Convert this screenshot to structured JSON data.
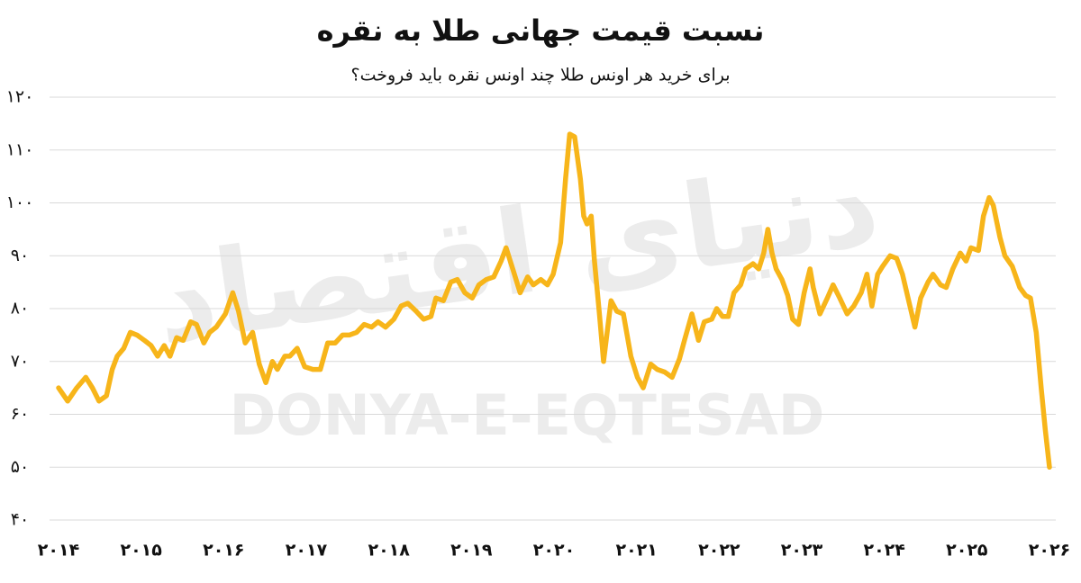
{
  "chart_data": {
    "type": "line",
    "title": "نسبت قیمت جهانی طلا به نقره",
    "subtitle": "برای خرید هر اونس طلا چند اونس نقره باید فروخت؟",
    "watermarks": [
      "دنیای اقتصاد",
      "DONYA-E-EQTESAD"
    ],
    "color": "#f7b51a",
    "grid": true,
    "xlim": [
      2014,
      2026
    ],
    "ylim": [
      40,
      120
    ],
    "xticks": [
      {
        "value": 2014,
        "label": "۲۰۱۴"
      },
      {
        "value": 2015,
        "label": "۲۰۱۵"
      },
      {
        "value": 2016,
        "label": "۲۰۱۶"
      },
      {
        "value": 2017,
        "label": "۲۰۱۷"
      },
      {
        "value": 2018,
        "label": "۲۰۱۸"
      },
      {
        "value": 2019,
        "label": "۲۰۱۹"
      },
      {
        "value": 2020,
        "label": "۲۰۲۰"
      },
      {
        "value": 2021,
        "label": "۲۰۲۱"
      },
      {
        "value": 2022,
        "label": "۲۰۲۲"
      },
      {
        "value": 2023,
        "label": "۲۰۲۳"
      },
      {
        "value": 2024,
        "label": "۲۰۲۴"
      },
      {
        "value": 2025,
        "label": "۲۰۲۵"
      },
      {
        "value": 2026,
        "label": "۲۰۲۶"
      }
    ],
    "yticks": [
      {
        "value": 40,
        "label": "۴۰"
      },
      {
        "value": 50,
        "label": "۵۰"
      },
      {
        "value": 60,
        "label": "۶۰"
      },
      {
        "value": 70,
        "label": "۷۰"
      },
      {
        "value": 80,
        "label": "۸۰"
      },
      {
        "value": 90,
        "label": "۹۰"
      },
      {
        "value": 100,
        "label": "۱۰۰"
      },
      {
        "value": 110,
        "label": "۱۱۰"
      },
      {
        "value": 120,
        "label": "۱۲۰"
      }
    ],
    "x": [
      2014.0,
      2014.11,
      2014.22,
      2014.33,
      2014.41,
      2014.49,
      2014.58,
      2014.65,
      2014.71,
      2014.79,
      2014.87,
      2014.95,
      2015.04,
      2015.12,
      2015.2,
      2015.28,
      2015.35,
      2015.43,
      2015.51,
      2015.6,
      2015.67,
      2015.76,
      2015.83,
      2015.91,
      2016.02,
      2016.11,
      2016.18,
      2016.26,
      2016.35,
      2016.43,
      2016.51,
      2016.59,
      2016.65,
      2016.74,
      2016.8,
      2016.89,
      2016.98,
      2017.08,
      2017.17,
      2017.26,
      2017.35,
      2017.44,
      2017.52,
      2017.61,
      2017.7,
      2017.79,
      2017.87,
      2017.96,
      2018.06,
      2018.15,
      2018.23,
      2018.33,
      2018.42,
      2018.51,
      2018.57,
      2018.66,
      2018.75,
      2018.83,
      2018.92,
      2019.01,
      2019.09,
      2019.18,
      2019.27,
      2019.36,
      2019.42,
      2019.5,
      2019.59,
      2019.68,
      2019.75,
      2019.84,
      2019.92,
      2019.99,
      2020.08,
      2020.14,
      2020.19,
      2020.25,
      2020.32,
      2020.36,
      2020.4,
      2020.45,
      2020.49,
      2020.55,
      2020.6,
      2020.69,
      2020.76,
      2020.84,
      2020.93,
      2021.01,
      2021.08,
      2021.17,
      2021.25,
      2021.34,
      2021.43,
      2021.52,
      2021.58,
      2021.67,
      2021.75,
      2021.82,
      2021.91,
      2021.97,
      2022.04,
      2022.11,
      2022.18,
      2022.26,
      2022.32,
      2022.41,
      2022.48,
      2022.54,
      2022.59,
      2022.64,
      2022.69,
      2022.76,
      2022.83,
      2022.89,
      2022.96,
      2023.03,
      2023.1,
      2023.14,
      2023.22,
      2023.31,
      2023.38,
      2023.46,
      2023.55,
      2023.63,
      2023.72,
      2023.79,
      2023.85,
      2023.92,
      2023.98,
      2024.07,
      2024.15,
      2024.22,
      2024.31,
      2024.37,
      2024.44,
      2024.53,
      2024.59,
      2024.68,
      2024.75,
      2024.83,
      2024.92,
      2024.99,
      2025.05,
      2025.14,
      2025.2,
      2025.27,
      2025.32,
      2025.4,
      2025.46,
      2025.55,
      2025.64,
      2025.71,
      2025.77,
      2025.84,
      2025.9,
      2025.95,
      2026.0
    ],
    "values": [
      65,
      62.5,
      65,
      67,
      65,
      62.5,
      63.5,
      68.5,
      71,
      72.5,
      75.5,
      75,
      74,
      73,
      71,
      73,
      71,
      74.5,
      74,
      77.5,
      77,
      73.5,
      75.5,
      76.5,
      79,
      83,
      79.5,
      73.5,
      75.5,
      69.5,
      66,
      70,
      68.5,
      71,
      71,
      72.5,
      69,
      68.5,
      68.5,
      73.5,
      73.5,
      75,
      75,
      75.5,
      77,
      76.5,
      77.5,
      76.5,
      78,
      80.5,
      81,
      79.5,
      78,
      78.5,
      82,
      81.5,
      85,
      85.5,
      83,
      82,
      84.5,
      85.5,
      86,
      89,
      91.5,
      87.5,
      83,
      86,
      84.5,
      85.5,
      84.5,
      86.5,
      92.5,
      104.5,
      113,
      112.5,
      104.5,
      97.5,
      96,
      97.5,
      89,
      79,
      70,
      81.5,
      79.5,
      79,
      71,
      67,
      65,
      69.5,
      68.5,
      68,
      67,
      70.5,
      74,
      79,
      74,
      77.5,
      78,
      80,
      78.5,
      78.5,
      83,
      84.5,
      87.5,
      88.5,
      87.5,
      90.5,
      95,
      90.5,
      87.5,
      85.5,
      82.5,
      78,
      77,
      83,
      87.5,
      84,
      79,
      82,
      84.5,
      82,
      79,
      80.5,
      83,
      86.5,
      80.5,
      86.5,
      88,
      90,
      89.5,
      86.5,
      80.5,
      76.5,
      82,
      85,
      86.5,
      84.5,
      84,
      87.5,
      90.5,
      89,
      91.5,
      91,
      97.5,
      101,
      99.5,
      93.5,
      90,
      88,
      84,
      82.5,
      82,
      75.5,
      65,
      57,
      50
    ]
  }
}
